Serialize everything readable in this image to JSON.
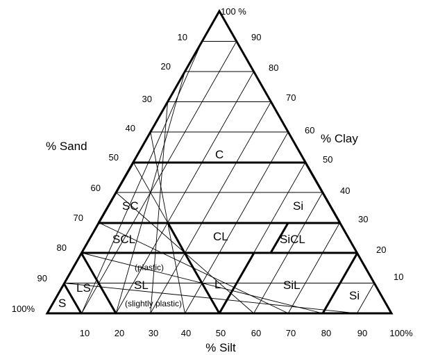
{
  "sand_title": "% Sand",
  "clay_title": "% Clay",
  "silt_title": "% Silt",
  "apex_label": "100 %",
  "sand_ticks": [
    "10",
    "20",
    "30",
    "40",
    "50",
    "60",
    "70",
    "80",
    "90",
    "100%"
  ],
  "clay_ticks": [
    "90",
    "80",
    "70",
    "60",
    "50",
    "40",
    "30",
    "20",
    "10"
  ],
  "silt_ticks": [
    "10",
    "20",
    "30",
    "40",
    "50",
    "60",
    "70",
    "80",
    "90",
    "100%"
  ],
  "regions": {
    "c": "C",
    "sc": "SC",
    "si_upper": "Si",
    "scl": "SCL",
    "cl": "CL",
    "sicl": "SiCL",
    "ls": "LS",
    "sl": "SL",
    "l": "L",
    "sil": "SiL",
    "s": "S",
    "si_lower": "Si"
  },
  "notes": {
    "plastic": "(plastic)",
    "slightly_plastic": "(slightly plastic)"
  }
}
